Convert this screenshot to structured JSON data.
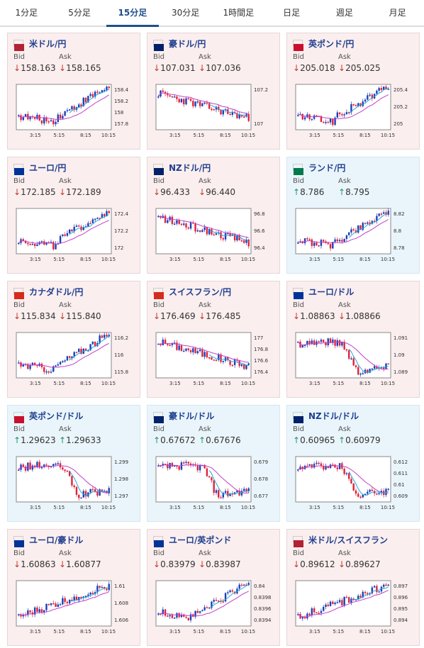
{
  "tabs": [
    "1分足",
    "5分足",
    "15分足",
    "30分足",
    "1時間足",
    "日足",
    "週足",
    "月足"
  ],
  "active_tab": 2,
  "bid_label": "Bid",
  "ask_label": "Ask",
  "x_ticks": [
    "3:15",
    "5:15",
    "8:15",
    "10:15"
  ],
  "cards": [
    {
      "pair": "米ドル/円",
      "flag": "us-jp",
      "dir": "down",
      "bid": "158.163",
      "ask": "158.165",
      "y_ticks": [
        "158.4",
        "158.2",
        "158",
        "157.8"
      ],
      "shape": "rise"
    },
    {
      "pair": "豪ドル/円",
      "flag": "au-jp",
      "dir": "down",
      "bid": "107.031",
      "ask": "107.036",
      "y_ticks": [
        "107.2",
        "107"
      ],
      "shape": "fall"
    },
    {
      "pair": "英ポンド/円",
      "flag": "gb-jp",
      "dir": "down",
      "bid": "205.018",
      "ask": "205.025",
      "y_ticks": [
        "205.4",
        "205.2",
        "205"
      ],
      "shape": "rise"
    },
    {
      "pair": "ユーロ/円",
      "flag": "eu-jp",
      "dir": "down",
      "bid": "172.185",
      "ask": "172.189",
      "y_ticks": [
        "172.4",
        "172.2",
        "172"
      ],
      "shape": "rise"
    },
    {
      "pair": "NZドル/円",
      "flag": "nz-jp",
      "dir": "down",
      "bid": "96.433",
      "ask": "96.440",
      "y_ticks": [
        "96.8",
        "96.6",
        "96.4"
      ],
      "shape": "fall"
    },
    {
      "pair": "ランド/円",
      "flag": "za-jp",
      "dir": "up",
      "bid": "8.786",
      "ask": "8.795",
      "y_ticks": [
        "8.82",
        "8.8",
        "8.78"
      ],
      "shape": "rise"
    },
    {
      "pair": "カナダドル/円",
      "flag": "ca-jp",
      "dir": "down",
      "bid": "115.834",
      "ask": "115.840",
      "y_ticks": [
        "116.2",
        "116",
        "115.8"
      ],
      "shape": "rise"
    },
    {
      "pair": "スイスフラン/円",
      "flag": "ch-jp",
      "dir": "down",
      "bid": "176.469",
      "ask": "176.485",
      "y_ticks": [
        "177",
        "176.8",
        "176.6",
        "176.4"
      ],
      "shape": "fall"
    },
    {
      "pair": "ユーロ/ドル",
      "flag": "eu-us",
      "dir": "down",
      "bid": "1.08863",
      "ask": "1.08866",
      "y_ticks": [
        "1.091",
        "1.09",
        "1.089"
      ],
      "shape": "drop"
    },
    {
      "pair": "英ポンド/ドル",
      "flag": "gb-us",
      "dir": "up",
      "bid": "1.29623",
      "ask": "1.29633",
      "y_ticks": [
        "1.299",
        "1.298",
        "1.297"
      ],
      "shape": "drop"
    },
    {
      "pair": "豪ドル/ドル",
      "flag": "au-us",
      "dir": "up",
      "bid": "0.67672",
      "ask": "0.67676",
      "y_ticks": [
        "0.679",
        "0.678",
        "0.677"
      ],
      "shape": "drop"
    },
    {
      "pair": "NZドル/ドル",
      "flag": "nz-us",
      "dir": "up",
      "bid": "0.60965",
      "ask": "0.60979",
      "y_ticks": [
        "0.612",
        "0.611",
        "0.61",
        "0.609"
      ],
      "shape": "drop"
    },
    {
      "pair": "ユーロ/豪ドル",
      "flag": "eu-au",
      "dir": "down",
      "bid": "1.60863",
      "ask": "1.60877",
      "y_ticks": [
        "1.61",
        "1.608",
        "1.606"
      ],
      "shape": "up"
    },
    {
      "pair": "ユーロ/英ポンド",
      "flag": "eu-gb",
      "dir": "down",
      "bid": "0.83979",
      "ask": "0.83987",
      "y_ticks": [
        "0.84",
        "0.8398",
        "0.8396",
        "0.8394"
      ],
      "shape": "rise"
    },
    {
      "pair": "米ドル/スイスフラン",
      "flag": "us-ch",
      "dir": "down",
      "bid": "0.89612",
      "ask": "0.89627",
      "y_ticks": [
        "0.897",
        "0.896",
        "0.895",
        "0.894"
      ],
      "shape": "up"
    }
  ],
  "colors": {
    "down_bg": "#fbeeee",
    "up_bg": "#eaf5fb",
    "candle_up": "#1a3fb8",
    "candle_down": "#e0223a",
    "ma_long": "#c03fc8",
    "ma_short": "#2aa7d8",
    "title": "#1f3f8f",
    "tab_active": "#1f4e8c"
  }
}
